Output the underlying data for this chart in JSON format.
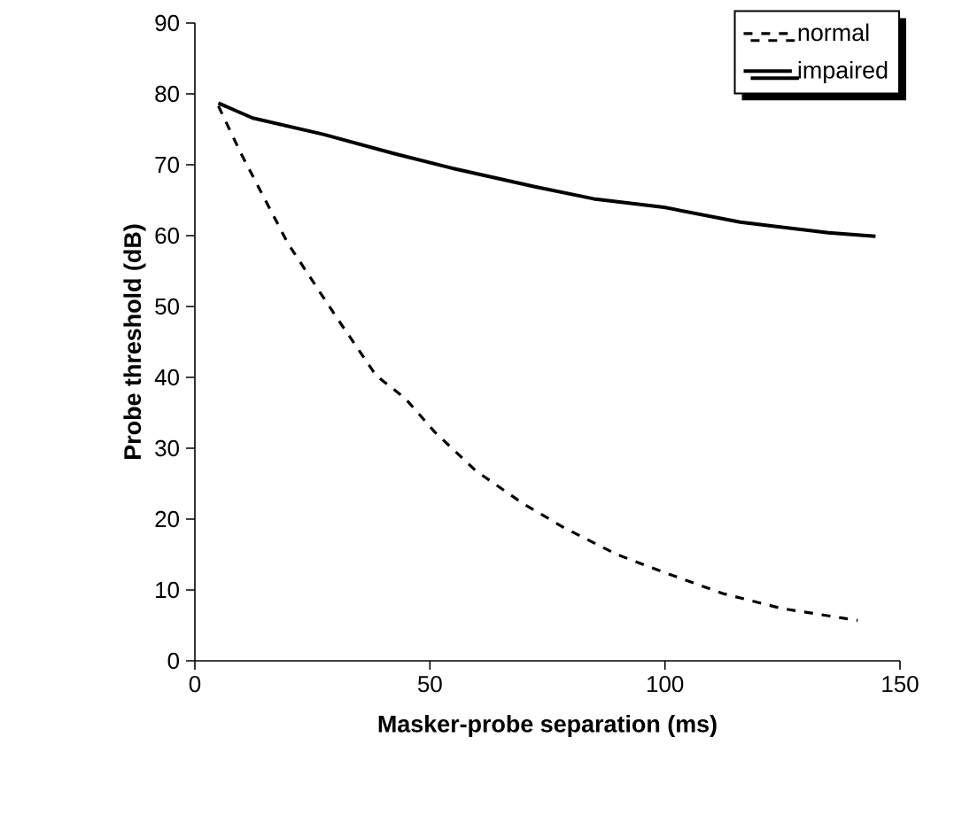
{
  "chart_data": {
    "type": "line",
    "xlabel": "Masker-probe separation (ms)",
    "ylabel": "Probe threshold (dB)",
    "xlim": [
      0,
      150
    ],
    "ylim": [
      0,
      90
    ],
    "xticks": [
      0,
      50,
      100,
      150
    ],
    "yticks": [
      0,
      10,
      20,
      30,
      40,
      50,
      60,
      70,
      80,
      90
    ],
    "legend": "top right",
    "grid": false,
    "marker": "none",
    "series": [
      {
        "name": "normal",
        "color": "#000000",
        "line_style": "dashed",
        "x": [
          5,
          9.8,
          19.8,
          29.8,
          38.5,
          44.8,
          51,
          59.8,
          69.8,
          78.5,
          89.8,
          99.8,
          112.3,
          124.8,
          141
        ],
        "values": [
          78.3,
          71.6,
          58.9,
          48.8,
          40.3,
          37,
          32.3,
          26.8,
          22.2,
          18.8,
          15,
          12.5,
          9.5,
          7.4,
          5.7
        ]
      },
      {
        "name": "impaired",
        "color": "#000000",
        "line_style": "solid",
        "x": [
          5,
          12.3,
          27.3,
          42.3,
          54.8,
          72.3,
          84.8,
          99.8,
          116,
          134.8,
          144.8
        ],
        "values": [
          78.7,
          76.6,
          74.3,
          71.6,
          69.5,
          66.9,
          65.2,
          64,
          61.9,
          60.4,
          59.9
        ]
      }
    ]
  }
}
